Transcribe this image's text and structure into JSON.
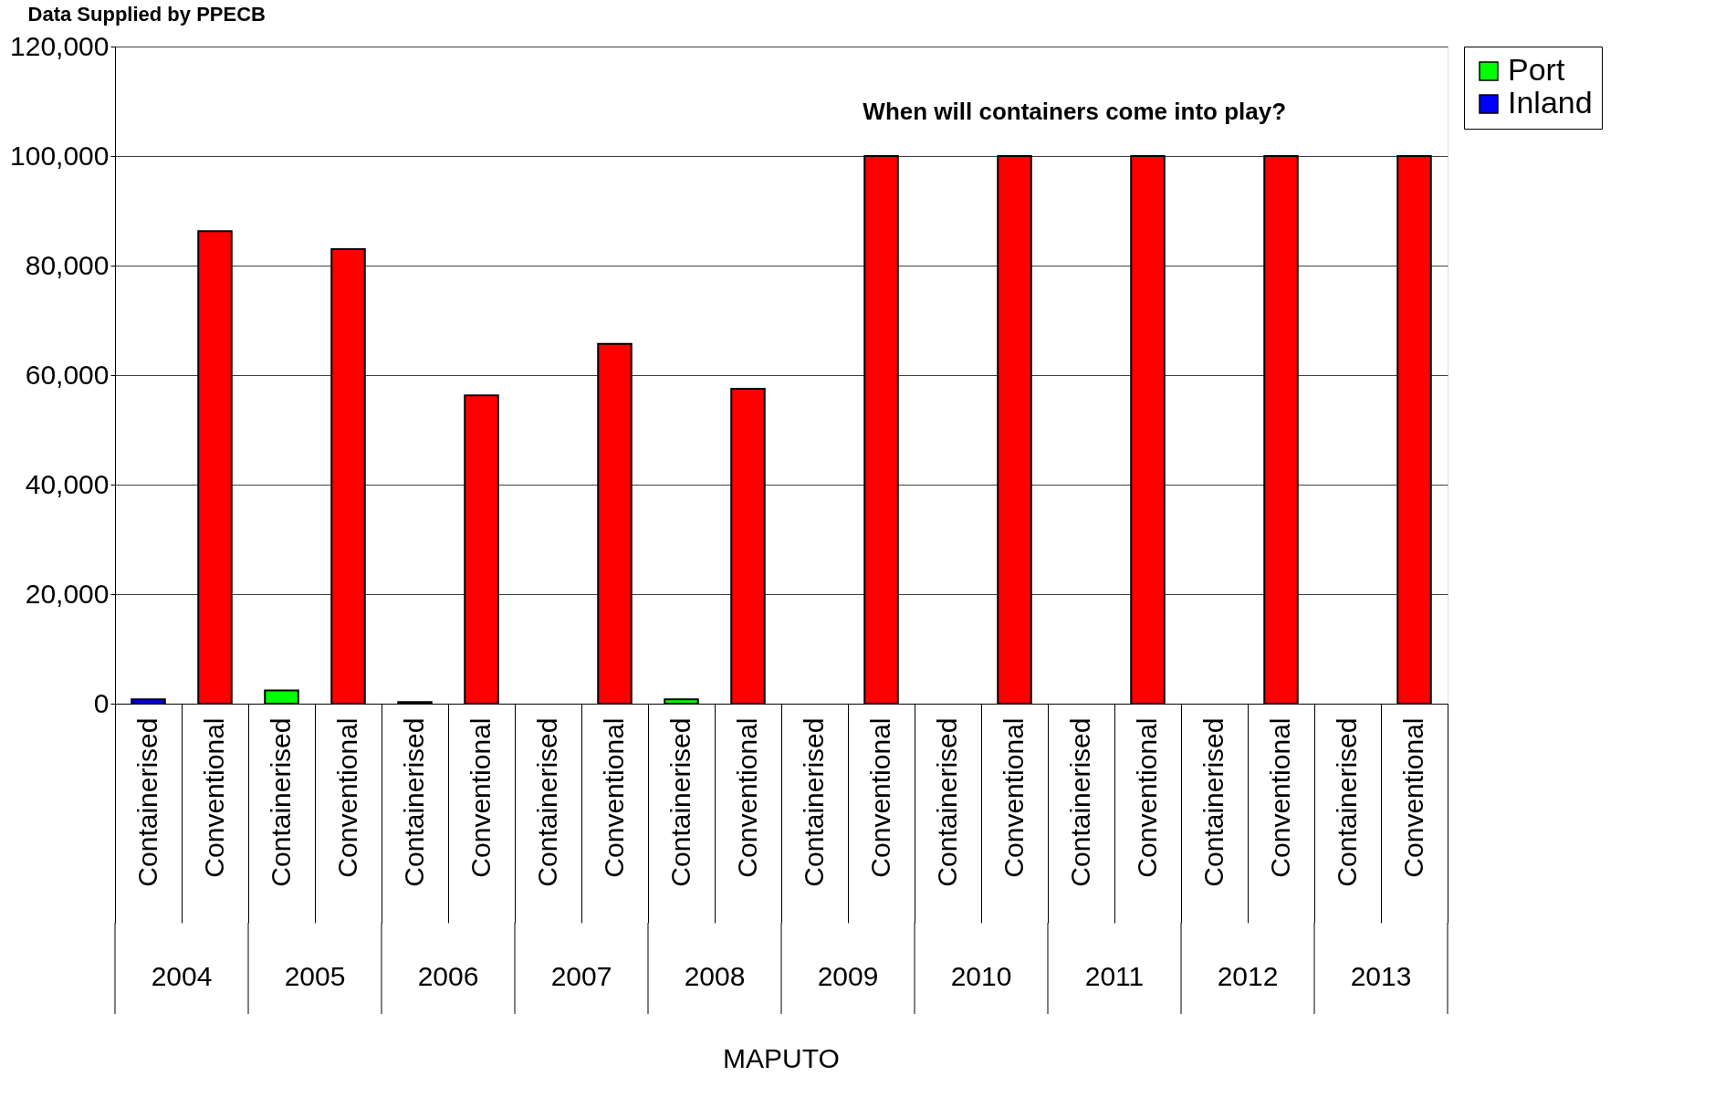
{
  "chart_data": {
    "type": "bar",
    "title": "Data Supplied by PPECB",
    "categories": [
      "Containerised",
      "Conventional",
      "Containerised",
      "Conventional",
      "Containerised",
      "Conventional",
      "Containerised",
      "Conventional",
      "Containerised",
      "Conventional",
      "Containerised",
      "Conventional",
      "Containerised",
      "Conventional",
      "Containerised",
      "Conventional",
      "Containerised",
      "Conventional",
      "Containerised",
      "Conventional"
    ],
    "series": [
      {
        "name": "Port",
        "color": "#00ff00",
        "values": [
          null,
          null,
          2400,
          null,
          null,
          null,
          null,
          null,
          800,
          null,
          null,
          null,
          null,
          null,
          null,
          null,
          null,
          null,
          null,
          null
        ]
      },
      {
        "name": "Inland",
        "color": "#0000ff",
        "values": [
          800,
          null,
          null,
          null,
          300,
          null,
          null,
          null,
          null,
          null,
          null,
          null,
          null,
          null,
          null,
          null,
          null,
          null,
          null,
          null
        ]
      },
      {
        "color": "#ff0000",
        "values": [
          null,
          86300,
          null,
          83000,
          null,
          56300,
          null,
          65700,
          null,
          57500,
          null,
          100000,
          null,
          100000,
          null,
          100000,
          null,
          100000,
          null,
          100000
        ]
      }
    ],
    "annotations": [
      "When will containers come into play?",
      "2004",
      "2005",
      "2006",
      "2007",
      "2008",
      "2009",
      "2010",
      "2011",
      "2012",
      "2013",
      "MAPUTO"
    ],
    "ylim": [
      0,
      120000
    ],
    "yticks": [
      0,
      {
        "value": 20000,
        "label": "20,000"
      },
      {
        "value": 40000,
        "label": "40,000"
      },
      {
        "value": 60000,
        "label": "60,000"
      },
      {
        "value": 80000,
        "label": "80,000"
      },
      {
        "value": 100000,
        "label": "100,000"
      },
      {
        "value": 120000,
        "label": "120,000"
      }
    ],
    "grid": "y",
    "legend": "top right"
  }
}
